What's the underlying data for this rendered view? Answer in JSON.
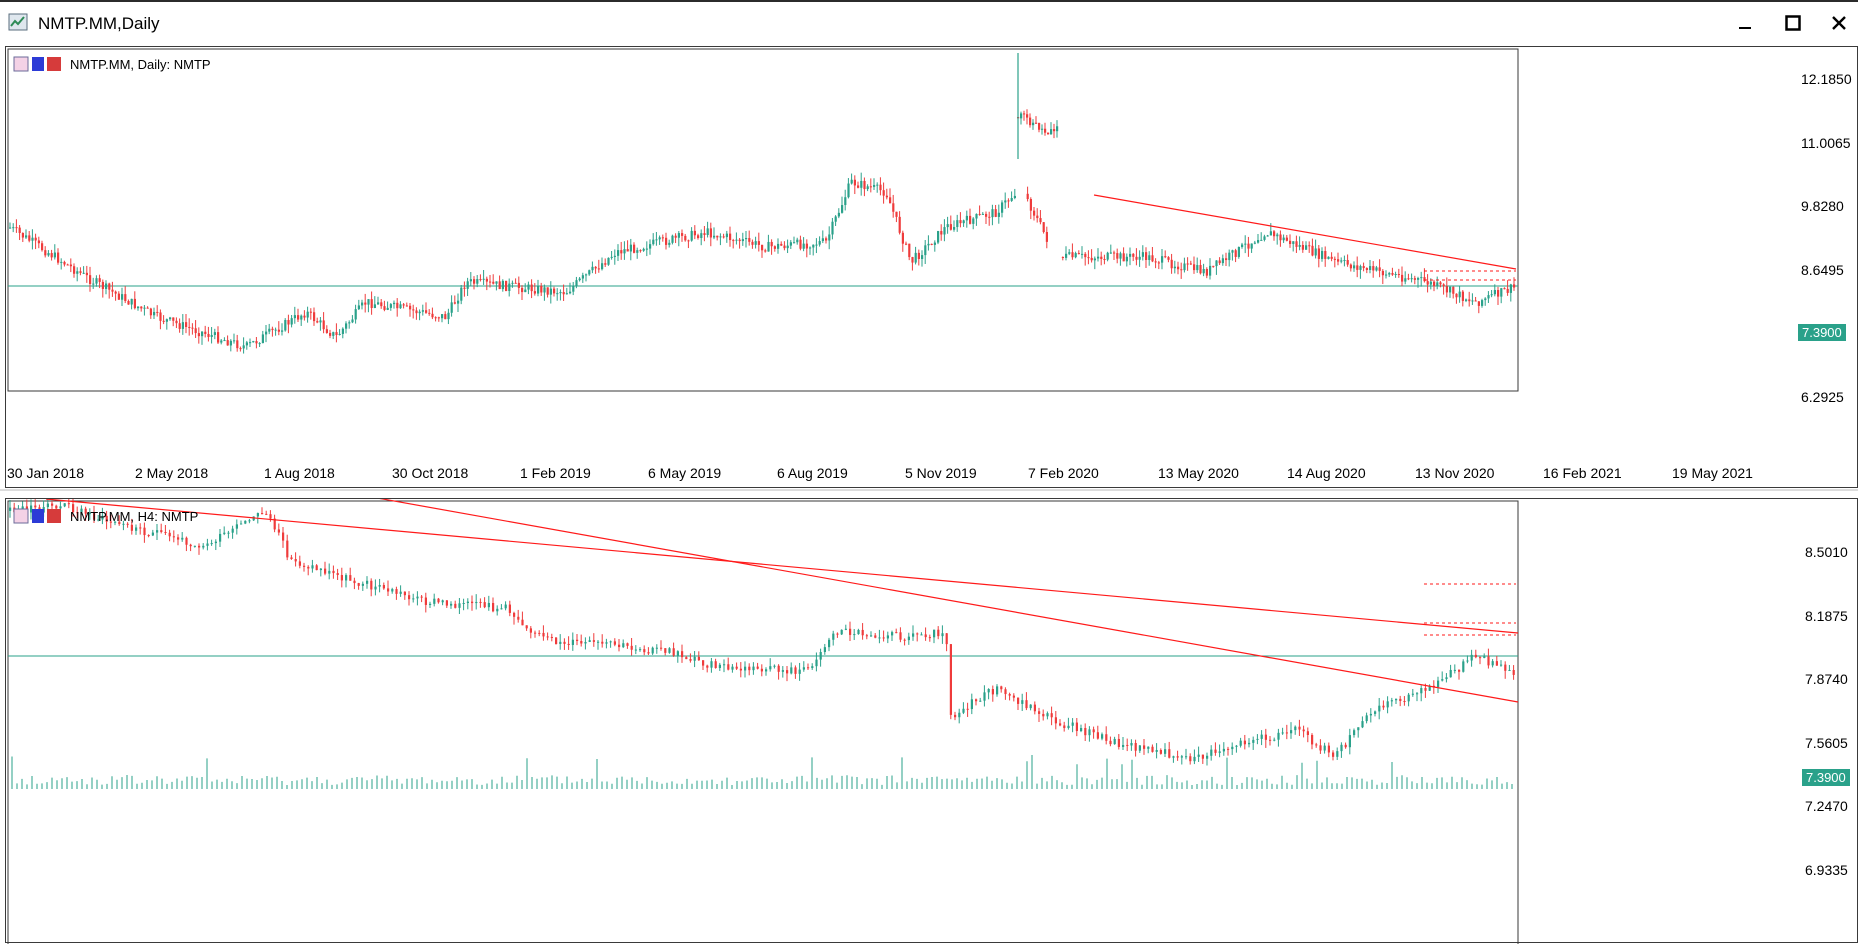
{
  "window": {
    "title": "NMTP.MM,Daily",
    "minimize_icon": "minimize-icon",
    "maximize_icon": "maximize-icon",
    "close_icon": "close-icon"
  },
  "daily_pane": {
    "label": "NMTP.MM, Daily:  NMTP",
    "price_levels": [
      "12.1850",
      "11.0065",
      "9.8280",
      "8.6495",
      "6.2925"
    ],
    "current_price": "7.3900",
    "dates": [
      "30 Jan 2018",
      "2 May 2018",
      "1 Aug 2018",
      "30 Oct 2018",
      "1 Feb 2019",
      "6 May 2019",
      "6 Aug 2019",
      "5 Nov 2019",
      "7 Feb 2020",
      "13 May 2020",
      "14 Aug 2020",
      "13 Nov 2020",
      "16 Feb 2021",
      "19 May 2021"
    ]
  },
  "h4_pane": {
    "label": "NMTP.MM, H4:  NMTP",
    "price_levels": [
      "8.5010",
      "8.1875",
      "7.8740",
      "7.5605",
      "7.2470",
      "6.9335"
    ],
    "current_price": "7.3900"
  },
  "colors": {
    "bull": "#2aa18a",
    "bear": "#ef3b3b",
    "trendline": "#ff1a1a",
    "current_price_line": "#2aa18a",
    "frame": "#3a3a3a"
  }
}
